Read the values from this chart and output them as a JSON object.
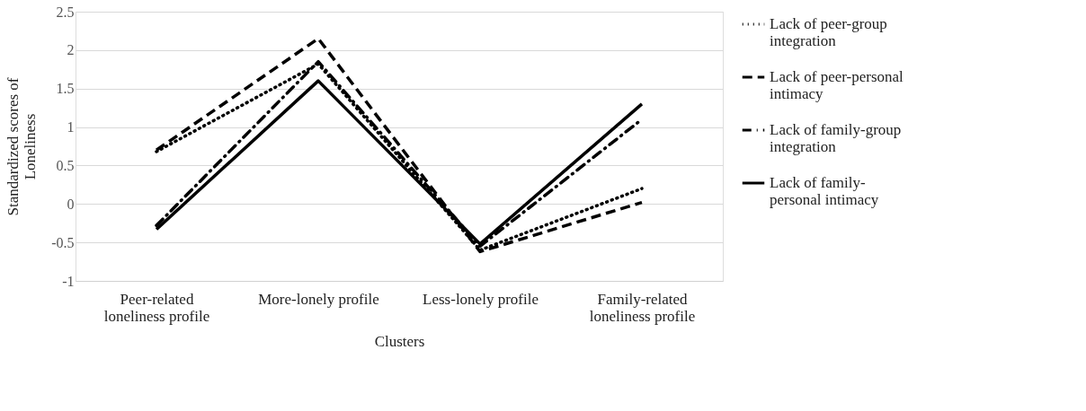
{
  "chart_data": {
    "type": "line",
    "xlabel": "Clusters",
    "ylabel": "Standardized scores of Loneliness",
    "categories": [
      "Peer-related loneliness profile",
      "More-lonely profile",
      "Less-lonely profile",
      "Family-related loneliness profile"
    ],
    "series": [
      {
        "name": "Lack of peer-group integration",
        "color": "#000000",
        "line_style": "dotted",
        "values": [
          0.68,
          1.82,
          -0.6,
          0.2
        ]
      },
      {
        "name": "Lack of peer-personal intimacy",
        "color": "#000000",
        "line_style": "dashed",
        "values": [
          0.7,
          2.15,
          -0.62,
          0.02
        ]
      },
      {
        "name": "Lack of family-group integration",
        "color": "#000000",
        "line_style": "dashdot",
        "values": [
          -0.28,
          1.85,
          -0.55,
          1.1
        ]
      },
      {
        "name": "Lack of family-personal intimacy",
        "color": "#000000",
        "line_style": "solid",
        "values": [
          -0.33,
          1.6,
          -0.52,
          1.3
        ]
      }
    ],
    "ylim": [
      -1,
      2.5
    ],
    "yticks": [
      -1,
      -0.5,
      0,
      0.5,
      1,
      1.5,
      2,
      2.5
    ],
    "grid": "y",
    "legend": "right",
    "marker": "none"
  }
}
